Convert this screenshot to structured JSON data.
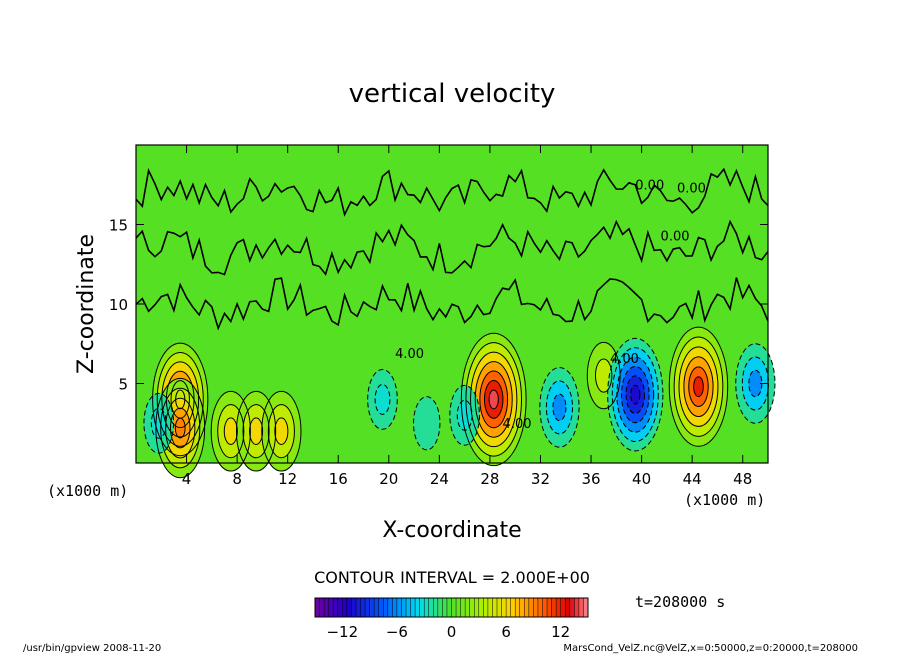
{
  "chart_data": {
    "type": "heatmap",
    "title": "vertical velocity",
    "xlabel": "X-coordinate",
    "ylabel": "Z-coordinate",
    "x_unit_left": "(x1000 m)",
    "x_unit_right": "(x1000 m)",
    "xlim": [
      0,
      50
    ],
    "ylim": [
      0,
      20
    ],
    "x_ticks": [
      4,
      8,
      12,
      16,
      20,
      24,
      28,
      32,
      36,
      40,
      44,
      48
    ],
    "y_ticks": [
      5,
      10,
      15
    ],
    "contour_interval_text": "CONTOUR INTERVAL = 2.000E+00",
    "time_text": "t=208000 s",
    "colorbar": {
      "range": [
        -15,
        15
      ],
      "ticks": [
        -12,
        -6,
        0,
        6,
        12
      ],
      "tick_labels": [
        "−12",
        "−6",
        "0",
        "6",
        "12"
      ]
    },
    "contour_labels": [
      "4.00",
      "4.00",
      "4.00",
      "0.00",
      "0.00",
      "0.00"
    ],
    "cells": [
      {
        "x": 3.5,
        "z": 4.0,
        "w": 11
      },
      {
        "x": 3.5,
        "z": 2.2,
        "w": 9
      },
      {
        "x": 1.8,
        "z": 2.5,
        "w": -3
      },
      {
        "x": 7.5,
        "z": 2.0,
        "w": 6
      },
      {
        "x": 9.5,
        "z": 2.0,
        "w": 6
      },
      {
        "x": 11.5,
        "z": 2.0,
        "w": 6
      },
      {
        "x": 19.5,
        "z": 4.0,
        "w": -3
      },
      {
        "x": 23.0,
        "z": 2.5,
        "w": -2
      },
      {
        "x": 28.3,
        "z": 4.0,
        "w": 14
      },
      {
        "x": 26.0,
        "z": 3.0,
        "w": -3
      },
      {
        "x": 33.5,
        "z": 3.5,
        "w": -6
      },
      {
        "x": 37.0,
        "z": 5.5,
        "w": 4
      },
      {
        "x": 39.5,
        "z": 4.3,
        "w": -11
      },
      {
        "x": 44.5,
        "z": 4.8,
        "w": 12
      },
      {
        "x": 49.0,
        "z": 5.0,
        "w": -6
      }
    ]
  },
  "footer": {
    "left": "/usr/bin/gpview  2008-11-20",
    "right": "MarsCond_VelZ.nc@VelZ,x=0:50000,z=0:20000,t=208000"
  }
}
